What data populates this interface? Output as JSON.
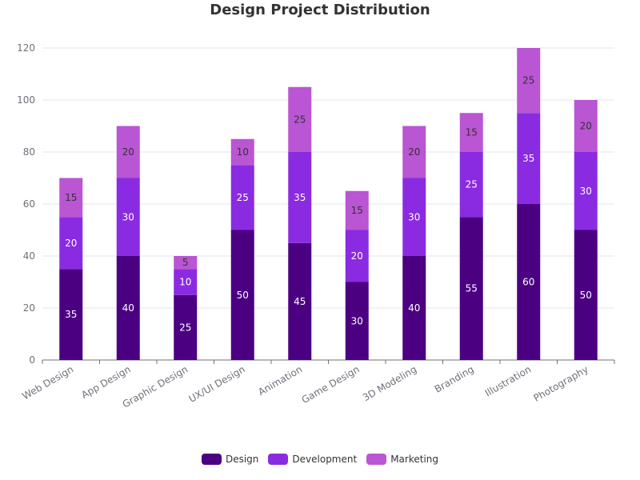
{
  "chart_data": {
    "type": "bar",
    "stacked": true,
    "title": "Design Project Distribution",
    "categories": [
      "Web Design",
      "App Design",
      "Graphic Design",
      "UX/UI Design",
      "Animation",
      "Game Design",
      "3D Modeling",
      "Branding",
      "Illustration",
      "Photography"
    ],
    "series": [
      {
        "name": "Design",
        "color": "#4b0082",
        "values": [
          35,
          40,
          25,
          50,
          45,
          30,
          40,
          55,
          60,
          50
        ]
      },
      {
        "name": "Development",
        "color": "#8a2be2",
        "values": [
          20,
          30,
          10,
          25,
          35,
          20,
          30,
          25,
          35,
          30
        ]
      },
      {
        "name": "Marketing",
        "color": "#ba55d3",
        "values": [
          15,
          20,
          5,
          10,
          25,
          15,
          20,
          15,
          25,
          20
        ]
      }
    ],
    "ylim": [
      0,
      120
    ],
    "yticks": [
      0,
      20,
      40,
      60,
      80,
      100,
      120
    ],
    "grid": true,
    "legend_position": "bottom",
    "xlabel": "",
    "ylabel": ""
  }
}
